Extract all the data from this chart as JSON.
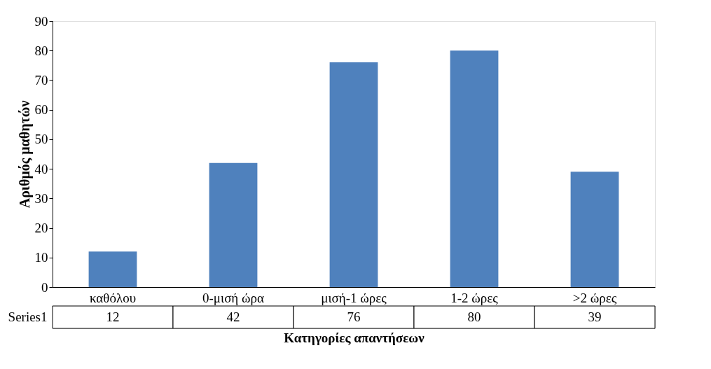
{
  "chart_data": {
    "type": "bar",
    "xlabel": "Κατηγορίες απαντήσεων",
    "ylabel": "Αριθμός μαθητών",
    "categories": [
      "καθόλου",
      "0-μισή ώρα",
      "μισή-1 ώρες",
      "1-2 ώρες",
      ">2 ώρες"
    ],
    "series": [
      {
        "name": "Series1",
        "color": "#4f81bd",
        "values": [
          12,
          42,
          76,
          80,
          39
        ]
      }
    ],
    "ylim": [
      0,
      90
    ],
    "yticks": [
      0,
      10,
      20,
      30,
      40,
      50,
      60,
      70,
      80,
      90
    ],
    "grid": false,
    "legend": false,
    "data_labels": true
  }
}
